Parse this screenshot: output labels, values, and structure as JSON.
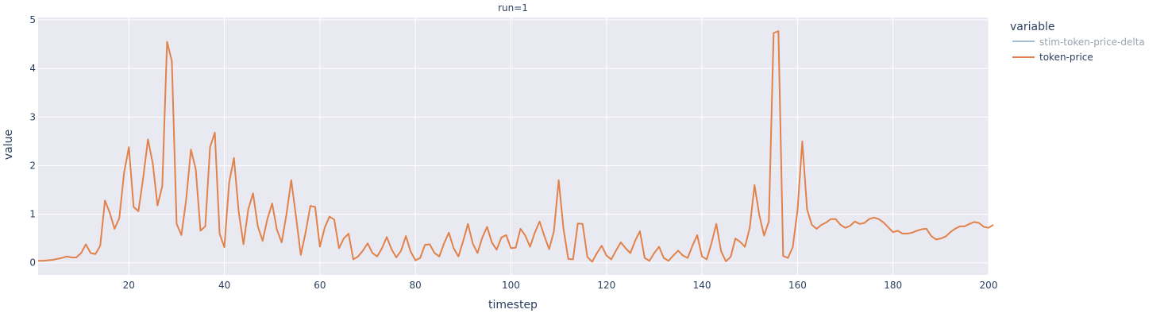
{
  "chart_data": {
    "type": "line",
    "title": "run=1",
    "xlabel": "timestep",
    "ylabel": "value",
    "xlim": [
      1,
      200
    ],
    "ylim": [
      -0.25,
      5.05
    ],
    "x_ticks": [
      20,
      40,
      60,
      80,
      100,
      120,
      140,
      160,
      180,
      200
    ],
    "y_ticks": [
      0,
      1,
      2,
      3,
      4,
      5
    ],
    "grid": true,
    "legend": {
      "title": "variable",
      "position": "right",
      "entries": [
        {
          "name": "stim-token-price-delta",
          "color": "#a9bcd6",
          "muted": true
        },
        {
          "name": "token-price",
          "color": "#e1824b",
          "muted": false
        }
      ]
    },
    "colors": {
      "plot_bg": "#e9e9f1",
      "grid": "#ffffff",
      "line": "#e1824b"
    },
    "series": [
      {
        "name": "token-price",
        "x_start": 1,
        "x_step": 1,
        "values": [
          0.04,
          0.04,
          0.05,
          0.06,
          0.08,
          0.1,
          0.13,
          0.11,
          0.11,
          0.2,
          0.38,
          0.2,
          0.18,
          0.35,
          1.28,
          1.03,
          0.7,
          0.92,
          1.85,
          2.38,
          1.15,
          1.06,
          1.75,
          2.54,
          2.05,
          1.18,
          1.58,
          4.55,
          4.15,
          0.8,
          0.57,
          1.3,
          2.33,
          1.93,
          0.66,
          0.75,
          2.38,
          2.68,
          0.6,
          0.32,
          1.65,
          2.16,
          1.05,
          0.38,
          1.1,
          1.43,
          0.75,
          0.45,
          0.9,
          1.22,
          0.68,
          0.42,
          1.0,
          1.7,
          0.95,
          0.16,
          0.62,
          1.17,
          1.15,
          0.33,
          0.72,
          0.95,
          0.89,
          0.3,
          0.5,
          0.6,
          0.07,
          0.13,
          0.25,
          0.4,
          0.2,
          0.13,
          0.3,
          0.53,
          0.28,
          0.11,
          0.25,
          0.55,
          0.23,
          0.05,
          0.1,
          0.37,
          0.38,
          0.2,
          0.13,
          0.4,
          0.62,
          0.3,
          0.13,
          0.45,
          0.8,
          0.4,
          0.2,
          0.52,
          0.74,
          0.42,
          0.27,
          0.52,
          0.57,
          0.3,
          0.31,
          0.7,
          0.56,
          0.33,
          0.62,
          0.85,
          0.55,
          0.28,
          0.65,
          1.7,
          0.7,
          0.08,
          0.07,
          0.81,
          0.8,
          0.12,
          0.02,
          0.2,
          0.35,
          0.15,
          0.07,
          0.25,
          0.42,
          0.3,
          0.2,
          0.45,
          0.65,
          0.1,
          0.04,
          0.2,
          0.33,
          0.1,
          0.04,
          0.15,
          0.25,
          0.15,
          0.1,
          0.35,
          0.57,
          0.13,
          0.07,
          0.41,
          0.8,
          0.24,
          0.03,
          0.12,
          0.5,
          0.43,
          0.33,
          0.72,
          1.6,
          0.98,
          0.56,
          0.85,
          4.73,
          4.77,
          0.14,
          0.1,
          0.32,
          1.08,
          2.5,
          1.1,
          0.78,
          0.7,
          0.78,
          0.83,
          0.9,
          0.9,
          0.78,
          0.72,
          0.76,
          0.85,
          0.8,
          0.82,
          0.9,
          0.93,
          0.9,
          0.83,
          0.73,
          0.63,
          0.66,
          0.6,
          0.6,
          0.62,
          0.66,
          0.69,
          0.7,
          0.55,
          0.48,
          0.5,
          0.54,
          0.63,
          0.7,
          0.75,
          0.75,
          0.8,
          0.84,
          0.82,
          0.74,
          0.72,
          0.78
        ]
      }
    ]
  }
}
